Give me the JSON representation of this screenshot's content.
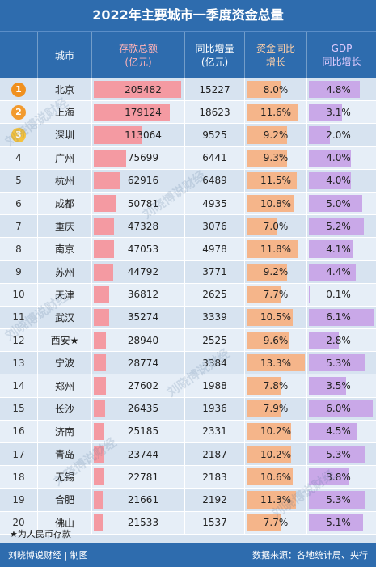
{
  "title": "2022年主要城市一季度资金总量",
  "headers": {
    "city": "城市",
    "deposit_l1": "存款总额",
    "deposit_l2": "(亿元)",
    "increase_l1": "同比增量",
    "increase_l2": "(亿元)",
    "growth_l1": "资金同比",
    "growth_l2": "增长",
    "gdp_l1": "GDP",
    "gdp_l2": "同比增长"
  },
  "colors": {
    "header_bg": "#2e6cae",
    "deposit_bar": "#f49aa2",
    "growth_bar": "#f5b58a",
    "gdp_bar": "#c9a8e8",
    "medal_gold": "#f0901e",
    "medal_silver": "#f29a2e",
    "medal_bronze": "#f5c23d"
  },
  "chart_data": {
    "type": "table",
    "title": "2022年主要城市一季度资金总量",
    "columns": [
      "",
      "城市",
      "存款总额(亿元)",
      "同比增量(亿元)",
      "资金同比增长",
      "GDP同比增长"
    ],
    "rows": [
      {
        "rank": "1",
        "city": "北京",
        "deposit": 205482,
        "increase": 15227,
        "growth": "8.0%",
        "gdp": "4.8%"
      },
      {
        "rank": "2",
        "city": "上海",
        "deposit": 179124,
        "increase": 18623,
        "growth": "11.6%",
        "gdp": "3.1%"
      },
      {
        "rank": "3",
        "city": "深圳",
        "deposit": 113064,
        "increase": 9525,
        "growth": "9.2%",
        "gdp": "2.0%"
      },
      {
        "rank": "4",
        "city": "广州",
        "deposit": 75699,
        "increase": 6441,
        "growth": "9.3%",
        "gdp": "4.0%"
      },
      {
        "rank": "5",
        "city": "杭州",
        "deposit": 62916,
        "increase": 6489,
        "growth": "11.5%",
        "gdp": "4.0%"
      },
      {
        "rank": "6",
        "city": "成都",
        "deposit": 50781,
        "increase": 4935,
        "growth": "10.8%",
        "gdp": "5.0%"
      },
      {
        "rank": "7",
        "city": "重庆",
        "deposit": 47328,
        "increase": 3076,
        "growth": "7.0%",
        "gdp": "5.2%"
      },
      {
        "rank": "8",
        "city": "南京",
        "deposit": 47053,
        "increase": 4978,
        "growth": "11.8%",
        "gdp": "4.1%"
      },
      {
        "rank": "9",
        "city": "苏州",
        "deposit": 44792,
        "increase": 3771,
        "growth": "9.2%",
        "gdp": "4.4%"
      },
      {
        "rank": "10",
        "city": "天津",
        "deposit": 36812,
        "increase": 2625,
        "growth": "7.7%",
        "gdp": "0.1%"
      },
      {
        "rank": "11",
        "city": "武汉",
        "deposit": 35274,
        "increase": 3339,
        "growth": "10.5%",
        "gdp": "6.1%"
      },
      {
        "rank": "12",
        "city": "西安★",
        "deposit": 28940,
        "increase": 2525,
        "growth": "9.6%",
        "gdp": "2.8%"
      },
      {
        "rank": "13",
        "city": "宁波",
        "deposit": 28774,
        "increase": 3384,
        "growth": "13.3%",
        "gdp": "5.3%"
      },
      {
        "rank": "14",
        "city": "郑州",
        "deposit": 27602,
        "increase": 1988,
        "growth": "7.8%",
        "gdp": "3.5%"
      },
      {
        "rank": "15",
        "city": "长沙",
        "deposit": 26435,
        "increase": 1936,
        "growth": "7.9%",
        "gdp": "6.0%"
      },
      {
        "rank": "16",
        "city": "济南",
        "deposit": 25185,
        "increase": 2331,
        "growth": "10.2%",
        "gdp": "4.5%"
      },
      {
        "rank": "17",
        "city": "青岛",
        "deposit": 23744,
        "increase": 2187,
        "growth": "10.2%",
        "gdp": "5.3%"
      },
      {
        "rank": "18",
        "city": "无锡",
        "deposit": 22781,
        "increase": 2183,
        "growth": "10.6%",
        "gdp": "3.8%"
      },
      {
        "rank": "19",
        "city": "合肥",
        "deposit": 21661,
        "increase": 2192,
        "growth": "11.3%",
        "gdp": "5.3%"
      },
      {
        "rank": "20",
        "city": "佛山",
        "deposit": 21533,
        "increase": 1537,
        "growth": "7.7%",
        "gdp": "5.1%"
      }
    ]
  },
  "note": "★为人民币存款",
  "footer": {
    "left": "刘晓博说财经 | 制图",
    "right": "数据来源：各地统计局、央行"
  },
  "watermark": "刘晓博说财经"
}
